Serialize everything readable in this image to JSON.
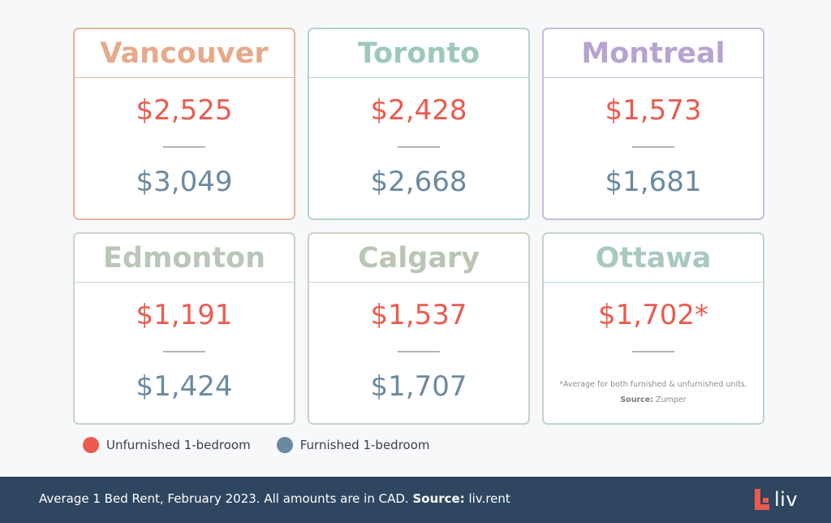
{
  "cards": [
    {
      "city": "Vancouver",
      "city_color": "#e7a98b",
      "line_color": "#e7b59f",
      "unfurnished": "$2,525",
      "furnished": "$3,049"
    },
    {
      "city": "Toronto",
      "city_color": "#9fc8bd",
      "line_color": "#b3d4cb",
      "unfurnished": "$2,428",
      "furnished": "$2,668"
    },
    {
      "city": "Montreal",
      "city_color": "#b7a3d1",
      "line_color": "#c9bddc",
      "unfurnished": "$1,573",
      "furnished": "$1,681"
    },
    {
      "city": "Edmonton",
      "city_color": "#b8c7ba",
      "line_color": "#c8d3c9",
      "unfurnished": "$1,191",
      "furnished": "$1,424"
    },
    {
      "city": "Calgary",
      "city_color": "#b9c6b4",
      "line_color": "#c8d2c4",
      "unfurnished": "$1,537",
      "furnished": "$1,707"
    },
    {
      "city": "Ottawa",
      "city_color": "#a9c9c0",
      "line_color": "#bcd6cf",
      "unfurnished": "$1,702*",
      "note": "*Average for both furnished & unfurnished units.",
      "source_label": "Source:",
      "source_value": "Zumper"
    }
  ],
  "colors": {
    "unfurnished": "#ea5b4f",
    "furnished": "#6b8aa0",
    "divider": "#b5b5b5",
    "footer_bg": "#2e4660"
  },
  "legend": {
    "unfurnished_label": "Unfurnished 1-bedroom",
    "furnished_label": "Furnished 1-bedroom"
  },
  "footer": {
    "text": "Average 1 Bed Rent, February 2023. All amounts are in CAD.",
    "source_label": "Source:",
    "source_value": "liv.rent",
    "logo_text": "liv",
    "logo_icon": "liv-logo-icon"
  }
}
